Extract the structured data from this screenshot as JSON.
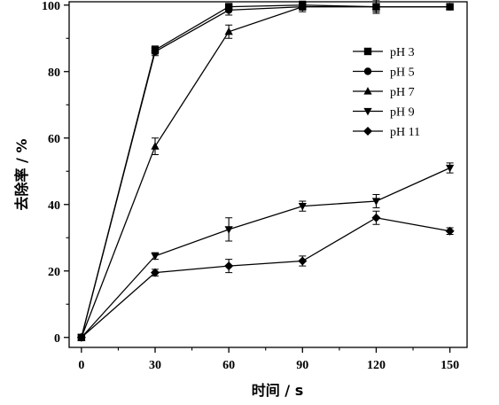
{
  "chart_data": {
    "type": "line",
    "title": "",
    "xlabel": "时间 / s",
    "ylabel": "去除率 / %",
    "x": [
      0,
      30,
      60,
      90,
      120,
      150
    ],
    "xticks": [
      "0",
      "30",
      "60",
      "90",
      "120",
      "150"
    ],
    "yticks": [
      "0",
      "20",
      "40",
      "60",
      "80",
      "100"
    ],
    "xlim": [
      -5,
      157
    ],
    "ylim": [
      -3,
      101
    ],
    "grid": false,
    "legend_position": "top-right",
    "series": [
      {
        "name": "pH 3",
        "marker": "square",
        "values": [
          0,
          86.5,
          99.5,
          100,
          99.5,
          99.5
        ],
        "errors": [
          0,
          1.2,
          1.0,
          1.2,
          1.5,
          0.8
        ]
      },
      {
        "name": "pH 5",
        "marker": "circle",
        "values": [
          0,
          86,
          98.5,
          99.5,
          99.5,
          99.5
        ],
        "errors": [
          0,
          1.2,
          1.5,
          1.0,
          2.0,
          0.8
        ]
      },
      {
        "name": "pH 7",
        "marker": "triangle-up",
        "values": [
          0,
          57.5,
          92,
          99.5,
          99.5,
          99.5
        ],
        "errors": [
          0,
          2.5,
          2.0,
          1.5,
          1.5,
          0.8
        ]
      },
      {
        "name": "pH 9",
        "marker": "triangle-down",
        "values": [
          0,
          24.5,
          32.5,
          39.5,
          41,
          51
        ],
        "errors": [
          0,
          1.0,
          3.5,
          1.5,
          2.0,
          1.5
        ]
      },
      {
        "name": "pH 11",
        "marker": "diamond",
        "values": [
          0,
          19.5,
          21.5,
          23,
          36,
          32
        ],
        "errors": [
          0,
          1.0,
          2.0,
          1.5,
          2.0,
          1.0
        ]
      }
    ]
  }
}
